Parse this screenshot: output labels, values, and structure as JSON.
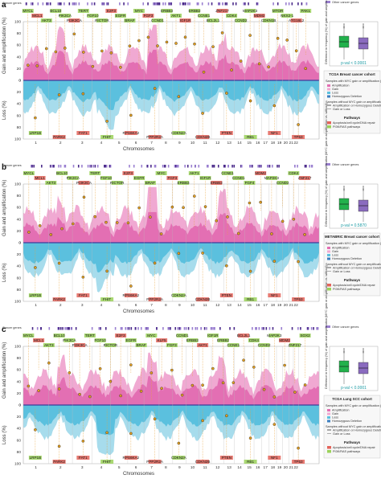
{
  "figure": {
    "track_label": "Cancer genes",
    "legend_other": "Other cancer genes",
    "x_title": "Chromosomes",
    "y_gain": "Gain and amplification (%)",
    "y_loss": "Loss (%)",
    "gain_ticks": [
      "0",
      "20",
      "40",
      "60",
      "80",
      "100"
    ],
    "loss_ticks": [
      "100",
      "80",
      "60",
      "40",
      "20",
      "0"
    ],
    "box_ylabel": "Difference in frequency (%) of gain and amplification (MYC gain or amplification vs. without)",
    "chromosomes": [
      "1",
      "2",
      "3",
      "4",
      "5",
      "6",
      "7",
      "8",
      "9",
      "10",
      "11",
      "12",
      "13",
      "14",
      "15",
      "16",
      "17",
      "18",
      "19",
      "20",
      "21",
      "22"
    ],
    "legend_pathways_title": "Pathways",
    "legend_pathway_items": [
      "Apoptosis/cell cycle/DNA repair",
      "PI3K/RAS pathways"
    ],
    "colors": {
      "gain": "#e36fb3",
      "gain_light": "#f0a9d2",
      "loss": "#5bc0de",
      "loss_light": "#a7dcec",
      "box_green": "#22b14c",
      "box_purple": "#8a6bbf",
      "orange": "#e8a33a",
      "green_tag": "#9bd25a",
      "red_tag": "#e4645a"
    }
  },
  "panels": [
    {
      "letter": "a",
      "cohort": "TCGA Breast cancer cohort",
      "pval": "p-val < 0.0001",
      "legend_with": "Samples with MYC gain or amplification (n=576)",
      "legend_without": "Samples without MYC gain or amplification (n=420)",
      "legend_items": [
        "Amplification",
        "Gain",
        "Loss",
        "Homozygous Deletion"
      ],
      "legend_items2": [
        "Amplification or Homozygous Deletion",
        "Gain or Loss"
      ],
      "gain_genes": [
        "MYCL",
        "MCL1",
        "AKT3",
        "BCL10",
        "PIK3CA",
        "PI3K3CA",
        "TERT",
        "FGF10",
        "RICTOR",
        "E2F3",
        "EGFR",
        "BRAF",
        "MYC",
        "FGF3",
        "CCND1",
        "ERBB3",
        "AKT1",
        "IGF1R",
        "ERBB2",
        "CCNE1",
        "BCL2L1",
        "ZNF217",
        "CDK4",
        "CCND2",
        "MAP2K3",
        "MDM2",
        "CDKN1B",
        "MTOR",
        "NKX2-1",
        "ATG16L2",
        "PAK1"
      ],
      "loss_genes": [
        "LRP1B",
        "PARK2",
        "FAT1",
        "FHIT",
        "RPS6KA2",
        "PPP2R2A",
        "CDKN2A",
        "CDKN2B",
        "PTEN",
        "RB1",
        "NF1",
        "TP53"
      ]
    },
    {
      "letter": "b",
      "cohort": "METABRIC Breast cancer cohort",
      "pval": "p-val = 0.5870",
      "legend_with": "Samples with MYC gain or amplification (n=1191)",
      "legend_without": "Samples without MYC gain or amplification (n=940)",
      "legend_items": [
        "Amplification",
        "Gain",
        "Loss",
        "Homozygous Deletion"
      ],
      "legend_items2": [
        "Amplification or Homozygous Deletion",
        "Gain or Loss"
      ],
      "gain_genes": [
        "MYCL",
        "MCL1",
        "AKT3",
        "BCL10",
        "PIK3CA",
        "PI3K3CA",
        "TERT",
        "FGF10",
        "RICTOR",
        "E2F3",
        "EGFR",
        "BRAF",
        "MYC",
        "FGF3",
        "ERBB3",
        "AKT1",
        "IGF1R",
        "ERBB2",
        "CCNE1",
        "CCND1",
        "FGF4",
        "MDM2",
        "MAP2K3",
        "CCND2",
        "CDK4",
        "ZNF217"
      ],
      "loss_genes": [
        "LRP1B",
        "PARK2",
        "FAT1",
        "FHIT",
        "RPS6KA2",
        "PPP2R2A",
        "CDKN2A",
        "CDKN2B",
        "PTEN",
        "RB1",
        "NF1",
        "TP53"
      ]
    },
    {
      "letter": "c",
      "cohort": "TCGA Lung SCC cohort",
      "pval": "p-val < 0.0001",
      "legend_with": "Samples with MYC gain or amplification (n=376)",
      "legend_without": "Samples without MYC gain or amplification (n=109)",
      "legend_items": [
        "Amplification",
        "Gain",
        "Loss",
        "Homozygous Deletion"
      ],
      "legend_items2": [
        "Amplification or Homozygous Deletion",
        "Gain or Loss"
      ],
      "gain_genes": [
        "MYCL",
        "MCL1",
        "AKT3",
        "BCL10",
        "PIK3CA",
        "PI3K3CA",
        "TERT",
        "FGF10",
        "RICTOR",
        "E2F3",
        "EGFR",
        "BRAF",
        "MYC",
        "KLF5",
        "FGF3",
        "CCND1",
        "ERBB3",
        "AKT1",
        "IGF1R",
        "ERBB2",
        "CCNE1",
        "BCL2L1",
        "CDK4",
        "CCND2",
        "MAP2K3",
        "MDM2",
        "ZNF217",
        "SOX2"
      ],
      "loss_genes": [
        "LRP1B",
        "PARK2",
        "FAT1",
        "FHIT",
        "RPS6KA2",
        "PPP2R2A",
        "CDKN2A",
        "CDKN2B",
        "PTEN",
        "RB1",
        "NF1",
        "TP53"
      ]
    }
  ]
}
